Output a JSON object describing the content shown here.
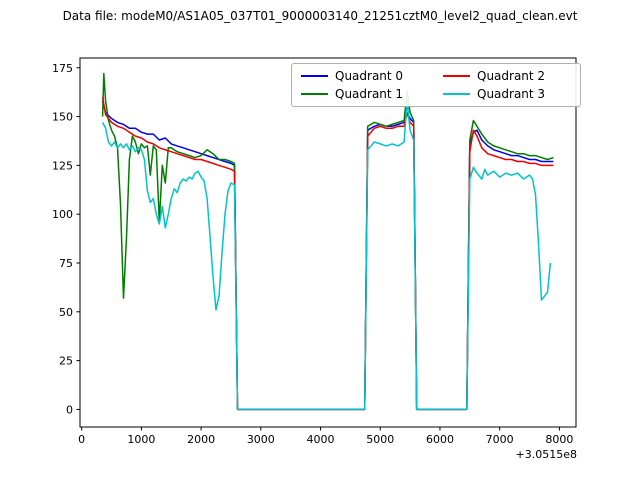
{
  "chart_data": {
    "type": "line",
    "title": "Data file: modeM0/AS1A05_037T01_9000003140_21251cztM0_level2_quad_clean.evt",
    "xlabel": "",
    "ylabel": "",
    "x_offset_label": "+3.0515e8",
    "x_ticks": [
      0,
      1000,
      2000,
      3000,
      4000,
      5000,
      6000,
      7000,
      8000
    ],
    "y_ticks": [
      0,
      25,
      50,
      75,
      100,
      125,
      150,
      175
    ],
    "xlim": [
      -28,
      8278
    ],
    "ylim": [
      -9,
      180
    ],
    "grid": false,
    "legend_position": "upper center, 2 columns",
    "series": [
      {
        "name": "Quadrant 0",
        "color": "#0000ee",
        "points": [
          [
            350,
            158
          ],
          [
            400,
            152
          ],
          [
            500,
            149
          ],
          [
            600,
            147
          ],
          [
            700,
            146
          ],
          [
            800,
            144
          ],
          [
            900,
            144
          ],
          [
            1000,
            142
          ],
          [
            1100,
            141
          ],
          [
            1200,
            141
          ],
          [
            1300,
            138
          ],
          [
            1400,
            139
          ],
          [
            1500,
            136
          ],
          [
            1600,
            135
          ],
          [
            1700,
            134
          ],
          [
            1800,
            133
          ],
          [
            1900,
            132
          ],
          [
            2000,
            131
          ],
          [
            2100,
            130
          ],
          [
            2200,
            129
          ],
          [
            2300,
            128
          ],
          [
            2400,
            127
          ],
          [
            2500,
            126
          ],
          [
            2560,
            125
          ],
          [
            2610,
            0
          ],
          [
            4740,
            0
          ],
          [
            4790,
            143
          ],
          [
            4900,
            145
          ],
          [
            5000,
            146
          ],
          [
            5100,
            145
          ],
          [
            5200,
            145
          ],
          [
            5300,
            146
          ],
          [
            5400,
            147
          ],
          [
            5450,
            152
          ],
          [
            5500,
            149
          ],
          [
            5560,
            147
          ],
          [
            5610,
            0
          ],
          [
            6450,
            0
          ],
          [
            6500,
            136
          ],
          [
            6560,
            142
          ],
          [
            6620,
            143
          ],
          [
            6700,
            138
          ],
          [
            6800,
            135
          ],
          [
            6900,
            133
          ],
          [
            7000,
            132
          ],
          [
            7100,
            131
          ],
          [
            7200,
            130
          ],
          [
            7300,
            130
          ],
          [
            7400,
            129
          ],
          [
            7500,
            128
          ],
          [
            7600,
            128
          ],
          [
            7700,
            127
          ],
          [
            7800,
            127
          ],
          [
            7900,
            127
          ]
        ]
      },
      {
        "name": "Quadrant 1",
        "color": "#007d00",
        "points": [
          [
            350,
            150
          ],
          [
            370,
            172
          ],
          [
            400,
            158
          ],
          [
            450,
            148
          ],
          [
            500,
            143
          ],
          [
            550,
            140
          ],
          [
            600,
            134
          ],
          [
            650,
            105
          ],
          [
            700,
            57
          ],
          [
            750,
            88
          ],
          [
            800,
            128
          ],
          [
            850,
            140
          ],
          [
            900,
            137
          ],
          [
            950,
            131
          ],
          [
            1000,
            136
          ],
          [
            1050,
            134
          ],
          [
            1100,
            135
          ],
          [
            1150,
            120
          ],
          [
            1200,
            135
          ],
          [
            1250,
            133
          ],
          [
            1300,
            96
          ],
          [
            1350,
            125
          ],
          [
            1400,
            116
          ],
          [
            1450,
            134
          ],
          [
            1500,
            134
          ],
          [
            1550,
            133
          ],
          [
            1600,
            132
          ],
          [
            1700,
            131
          ],
          [
            1800,
            130
          ],
          [
            1900,
            129
          ],
          [
            2000,
            130
          ],
          [
            2100,
            133
          ],
          [
            2200,
            131
          ],
          [
            2300,
            128
          ],
          [
            2400,
            128
          ],
          [
            2500,
            127
          ],
          [
            2560,
            126
          ],
          [
            2610,
            0
          ],
          [
            4740,
            0
          ],
          [
            4790,
            145
          ],
          [
            4900,
            147
          ],
          [
            5000,
            146
          ],
          [
            5100,
            145
          ],
          [
            5200,
            146
          ],
          [
            5300,
            147
          ],
          [
            5400,
            148
          ],
          [
            5450,
            163
          ],
          [
            5500,
            152
          ],
          [
            5560,
            148
          ],
          [
            5610,
            0
          ],
          [
            6450,
            0
          ],
          [
            6500,
            138
          ],
          [
            6560,
            148
          ],
          [
            6620,
            145
          ],
          [
            6700,
            141
          ],
          [
            6800,
            137
          ],
          [
            6900,
            135
          ],
          [
            7000,
            134
          ],
          [
            7100,
            133
          ],
          [
            7200,
            132
          ],
          [
            7300,
            131
          ],
          [
            7400,
            131
          ],
          [
            7500,
            130
          ],
          [
            7600,
            130
          ],
          [
            7700,
            129
          ],
          [
            7800,
            128
          ],
          [
            7900,
            129
          ]
        ]
      },
      {
        "name": "Quadrant 2",
        "color": "#ee0000",
        "points": [
          [
            350,
            160
          ],
          [
            400,
            151
          ],
          [
            500,
            147
          ],
          [
            600,
            145
          ],
          [
            700,
            144
          ],
          [
            800,
            142
          ],
          [
            900,
            140
          ],
          [
            1000,
            139
          ],
          [
            1100,
            137
          ],
          [
            1200,
            136
          ],
          [
            1300,
            134
          ],
          [
            1400,
            133
          ],
          [
            1500,
            132
          ],
          [
            1600,
            131
          ],
          [
            1700,
            130
          ],
          [
            1800,
            129
          ],
          [
            1900,
            128
          ],
          [
            2000,
            128
          ],
          [
            2100,
            127
          ],
          [
            2200,
            126
          ],
          [
            2300,
            125
          ],
          [
            2400,
            124
          ],
          [
            2500,
            123
          ],
          [
            2560,
            122
          ],
          [
            2610,
            0
          ],
          [
            4740,
            0
          ],
          [
            4790,
            140
          ],
          [
            4900,
            144
          ],
          [
            5000,
            145
          ],
          [
            5100,
            144
          ],
          [
            5200,
            144
          ],
          [
            5300,
            145
          ],
          [
            5400,
            145
          ],
          [
            5450,
            152
          ],
          [
            5500,
            147
          ],
          [
            5560,
            145
          ],
          [
            5610,
            0
          ],
          [
            6450,
            0
          ],
          [
            6500,
            132
          ],
          [
            6560,
            143
          ],
          [
            6620,
            140
          ],
          [
            6700,
            134
          ],
          [
            6800,
            131
          ],
          [
            6900,
            130
          ],
          [
            7000,
            129
          ],
          [
            7100,
            128
          ],
          [
            7200,
            128
          ],
          [
            7300,
            127
          ],
          [
            7400,
            127
          ],
          [
            7500,
            126
          ],
          [
            7600,
            126
          ],
          [
            7700,
            125
          ],
          [
            7800,
            125
          ],
          [
            7900,
            125
          ]
        ]
      },
      {
        "name": "Quadrant 3",
        "color": "#00c3cc",
        "points": [
          [
            350,
            147
          ],
          [
            400,
            144
          ],
          [
            450,
            137
          ],
          [
            500,
            135
          ],
          [
            550,
            137
          ],
          [
            600,
            134
          ],
          [
            650,
            136
          ],
          [
            700,
            134
          ],
          [
            750,
            136
          ],
          [
            800,
            133
          ],
          [
            850,
            135
          ],
          [
            900,
            132
          ],
          [
            950,
            134
          ],
          [
            1000,
            133
          ],
          [
            1050,
            128
          ],
          [
            1100,
            112
          ],
          [
            1150,
            106
          ],
          [
            1200,
            108
          ],
          [
            1250,
            100
          ],
          [
            1300,
            95
          ],
          [
            1350,
            104
          ],
          [
            1400,
            93
          ],
          [
            1450,
            100
          ],
          [
            1500,
            108
          ],
          [
            1550,
            113
          ],
          [
            1600,
            111
          ],
          [
            1650,
            116
          ],
          [
            1700,
            118
          ],
          [
            1750,
            117
          ],
          [
            1800,
            119
          ],
          [
            1850,
            118
          ],
          [
            1900,
            121
          ],
          [
            1950,
            122
          ],
          [
            2000,
            119
          ],
          [
            2050,
            117
          ],
          [
            2100,
            108
          ],
          [
            2150,
            88
          ],
          [
            2200,
            68
          ],
          [
            2250,
            51
          ],
          [
            2300,
            58
          ],
          [
            2350,
            80
          ],
          [
            2400,
            100
          ],
          [
            2450,
            112
          ],
          [
            2500,
            116
          ],
          [
            2560,
            115
          ],
          [
            2610,
            0
          ],
          [
            4740,
            0
          ],
          [
            4790,
            133
          ],
          [
            4900,
            137
          ],
          [
            5000,
            136
          ],
          [
            5100,
            135
          ],
          [
            5200,
            136
          ],
          [
            5300,
            135
          ],
          [
            5400,
            137
          ],
          [
            5450,
            158
          ],
          [
            5500,
            143
          ],
          [
            5560,
            138
          ],
          [
            5610,
            0
          ],
          [
            6450,
            0
          ],
          [
            6500,
            118
          ],
          [
            6560,
            124
          ],
          [
            6620,
            121
          ],
          [
            6700,
            118
          ],
          [
            6750,
            123
          ],
          [
            6800,
            120
          ],
          [
            6900,
            122
          ],
          [
            7000,
            119
          ],
          [
            7100,
            121
          ],
          [
            7200,
            120
          ],
          [
            7300,
            121
          ],
          [
            7400,
            118
          ],
          [
            7500,
            120
          ],
          [
            7550,
            118
          ],
          [
            7600,
            110
          ],
          [
            7650,
            85
          ],
          [
            7700,
            56
          ],
          [
            7750,
            58
          ],
          [
            7800,
            60
          ],
          [
            7850,
            75
          ]
        ]
      }
    ]
  }
}
